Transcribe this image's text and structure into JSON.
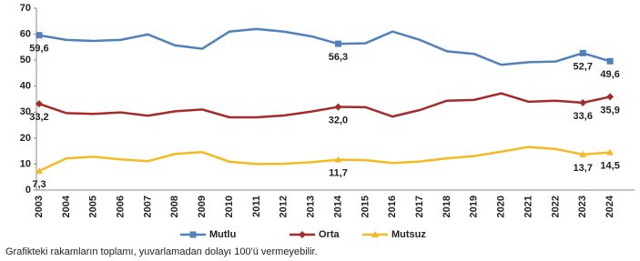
{
  "chart_data": {
    "type": "line",
    "categories": [
      "2003",
      "2004",
      "2005",
      "2006",
      "2007",
      "2008",
      "2009",
      "2010",
      "2011",
      "2012",
      "2013",
      "2014",
      "2015",
      "2016",
      "2017",
      "2018",
      "2019",
      "2020",
      "2021",
      "2022",
      "2023",
      "2024"
    ],
    "series": [
      {
        "name": "Mutlu",
        "color": "#4f81bd",
        "marker": "square",
        "values": [
          59.6,
          57.8,
          57.4,
          57.8,
          59.9,
          55.7,
          54.4,
          61.0,
          62.0,
          61.0,
          59.2,
          56.3,
          56.5,
          61.0,
          57.8,
          53.4,
          52.4,
          48.2,
          49.2,
          49.5,
          52.7,
          49.6
        ],
        "value_labels": [
          "59,6",
          null,
          null,
          null,
          null,
          null,
          null,
          null,
          null,
          null,
          null,
          "56,3",
          null,
          null,
          null,
          null,
          null,
          null,
          null,
          null,
          "52,7",
          "49,6"
        ]
      },
      {
        "name": "Orta",
        "color": "#a52a2a",
        "marker": "diamond",
        "values": [
          33.2,
          29.6,
          29.3,
          29.9,
          28.6,
          30.3,
          31.0,
          28.0,
          28.0,
          28.7,
          30.2,
          32.0,
          31.9,
          28.3,
          30.8,
          34.4,
          34.7,
          37.2,
          34.0,
          34.4,
          33.6,
          35.9
        ],
        "value_labels": [
          "33,2",
          null,
          null,
          null,
          null,
          null,
          null,
          null,
          null,
          null,
          null,
          "32,0",
          null,
          null,
          null,
          null,
          null,
          null,
          null,
          null,
          "33,6",
          "35,9"
        ]
      },
      {
        "name": "Mutsuz",
        "color": "#f5b921",
        "marker": "triangle",
        "values": [
          7.3,
          12.2,
          12.8,
          11.8,
          11.1,
          13.9,
          14.6,
          10.9,
          10.0,
          10.1,
          10.7,
          11.7,
          11.5,
          10.4,
          11.0,
          12.2,
          13.1,
          14.8,
          16.6,
          15.8,
          13.7,
          14.5
        ],
        "value_labels": [
          "7,3",
          null,
          null,
          null,
          null,
          null,
          null,
          null,
          null,
          null,
          null,
          "11,7",
          null,
          null,
          null,
          null,
          null,
          null,
          null,
          null,
          "13,7",
          "14,5"
        ]
      }
    ],
    "ylim": [
      0,
      70
    ],
    "yticks": [
      0,
      10,
      20,
      30,
      40,
      50,
      60,
      70
    ],
    "grid": false,
    "legend": "bottom"
  },
  "note": "Grafikteki rakamların toplamı, yuvarlamadan dolayı 100'ü vermeyebilir."
}
